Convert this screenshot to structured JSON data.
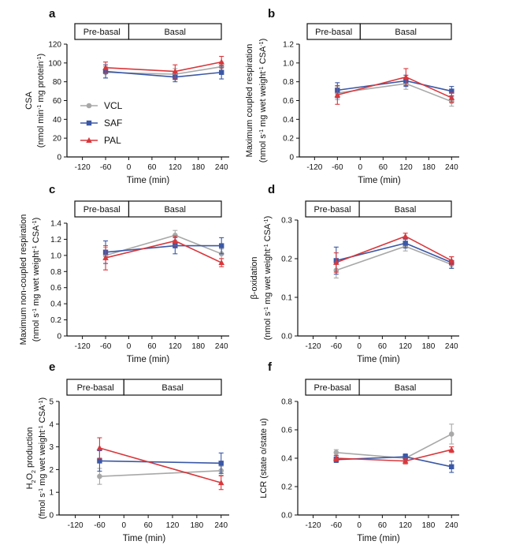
{
  "colors": {
    "VCL": "#a8a8a8",
    "SAF": "#3b58a6",
    "PAL": "#d9373b"
  },
  "legend": {
    "entries": [
      "VCL",
      "SAF",
      "PAL"
    ],
    "placement": "inside panel a, lower-left"
  },
  "chart_data": [
    {
      "type": "line",
      "panel": "a",
      "xlabel": "Time (min)",
      "ylabel": "CSA",
      "yunit_parts": [
        [
          "(nmol min",
          "normal"
        ],
        [
          "-1",
          "sup"
        ],
        [
          " mg protein",
          "normal"
        ],
        [
          "-1",
          "sup"
        ],
        [
          ")",
          "normal"
        ]
      ],
      "xticks": [
        -120,
        -60,
        0,
        60,
        120,
        180,
        240
      ],
      "xlim": [
        -160,
        260
      ],
      "ylim": [
        0,
        120
      ],
      "yticks": [
        0,
        20,
        40,
        60,
        80,
        100,
        120
      ],
      "ytick_labels": [
        "0",
        "20",
        "40",
        "60",
        "80",
        "100",
        "120"
      ],
      "phase_labels": [
        "Pre-basal",
        "Basal"
      ],
      "x": [
        -60,
        120,
        240
      ],
      "series": [
        {
          "name": "VCL",
          "values": [
            90,
            88,
            96
          ],
          "err": [
            6,
            6,
            5
          ]
        },
        {
          "name": "SAF",
          "values": [
            91,
            85,
            90
          ],
          "err": [
            7,
            5,
            7
          ]
        },
        {
          "name": "PAL",
          "values": [
            95,
            91,
            101
          ],
          "err": [
            6,
            7,
            6
          ]
        }
      ]
    },
    {
      "type": "line",
      "panel": "b",
      "xlabel": "Time (min)",
      "ylabel": "Maximum coupled respiration",
      "yunit_parts": [
        [
          "(nmol s",
          "normal"
        ],
        [
          "-1",
          "sup"
        ],
        [
          " mg wet weight",
          "normal"
        ],
        [
          "-1",
          "sup"
        ],
        [
          " CSA",
          "normal"
        ],
        [
          "-1",
          "sup"
        ],
        [
          ")",
          "normal"
        ]
      ],
      "xticks": [
        -120,
        -60,
        0,
        60,
        120,
        180,
        240
      ],
      "xlim": [
        -160,
        260
      ],
      "ylim": [
        0,
        1.2
      ],
      "yticks": [
        0,
        0.2,
        0.4,
        0.6,
        0.8,
        1.0,
        1.2
      ],
      "ytick_labels": [
        "0",
        "0.2",
        "0.4",
        "0.6",
        "0.8",
        "1.0",
        "1.2"
      ],
      "phase_labels": [
        "Pre-basal",
        "Basal"
      ],
      "x": [
        -60,
        120,
        240
      ],
      "series": [
        {
          "name": "VCL",
          "values": [
            0.68,
            0.78,
            0.59
          ],
          "err": [
            0.07,
            0.06,
            0.05
          ]
        },
        {
          "name": "SAF",
          "values": [
            0.71,
            0.81,
            0.7
          ],
          "err": [
            0.08,
            0.06,
            0.05
          ]
        },
        {
          "name": "PAL",
          "values": [
            0.66,
            0.85,
            0.63
          ],
          "err": [
            0.1,
            0.09,
            0.05
          ]
        }
      ]
    },
    {
      "type": "line",
      "panel": "c",
      "xlabel": "Time (min)",
      "ylabel": "Maximum non-coupled respiration",
      "yunit_parts": [
        [
          "(nmol s",
          "normal"
        ],
        [
          "-1",
          "sup"
        ],
        [
          " mg wet weight",
          "normal"
        ],
        [
          "-1",
          "sup"
        ],
        [
          " CSA",
          "normal"
        ],
        [
          "-1",
          "sup"
        ],
        [
          ")",
          "normal"
        ]
      ],
      "xticks": [
        -120,
        -60,
        0,
        60,
        120,
        180,
        240
      ],
      "xlim": [
        -160,
        260
      ],
      "ylim": [
        0,
        1.4
      ],
      "yticks": [
        0,
        0.2,
        0.4,
        0.6,
        0.8,
        1.0,
        1.2,
        1.4
      ],
      "ytick_labels": [
        "0",
        "0.2",
        "0.4",
        "0.6",
        "0.8",
        "1.0",
        "1.2",
        "1.4"
      ],
      "phase_labels": [
        "Pre-basal",
        "Basal"
      ],
      "x": [
        -60,
        120,
        240
      ],
      "series": [
        {
          "name": "VCL",
          "values": [
            1.0,
            1.25,
            1.02
          ],
          "err": [
            0.1,
            0.06,
            0.06
          ]
        },
        {
          "name": "SAF",
          "values": [
            1.04,
            1.12,
            1.12
          ],
          "err": [
            0.14,
            0.1,
            0.1
          ]
        },
        {
          "name": "PAL",
          "values": [
            0.97,
            1.18,
            0.91
          ],
          "err": [
            0.15,
            0.06,
            0.05
          ]
        }
      ]
    },
    {
      "type": "line",
      "panel": "d",
      "xlabel": "Time (min)",
      "ylabel": "β-oxidation",
      "yunit_parts": [
        [
          "(nmol s",
          "normal"
        ],
        [
          "-1",
          "sup"
        ],
        [
          " mg wet weight",
          "normal"
        ],
        [
          "-1",
          "sup"
        ],
        [
          " CSA",
          "normal"
        ],
        [
          "-1",
          "sup"
        ],
        [
          ")",
          "normal"
        ]
      ],
      "xticks": [
        -120,
        -60,
        0,
        60,
        120,
        180,
        240
      ],
      "xlim": [
        -160,
        260
      ],
      "ylim": [
        0,
        0.3
      ],
      "yticks": [
        0,
        0.1,
        0.2,
        0.3
      ],
      "ytick_labels": [
        "0.0",
        "0.1",
        "0.2",
        "0.3"
      ],
      "phase_labels": [
        "Pre-basal",
        "Basal"
      ],
      "x": [
        -60,
        120,
        240
      ],
      "series": [
        {
          "name": "VCL",
          "values": [
            0.17,
            0.232,
            0.185
          ],
          "err": [
            0.02,
            0.012,
            0.01
          ]
        },
        {
          "name": "SAF",
          "values": [
            0.195,
            0.24,
            0.19
          ],
          "err": [
            0.035,
            0.012,
            0.015
          ]
        },
        {
          "name": "PAL",
          "values": [
            0.19,
            0.258,
            0.195
          ],
          "err": [
            0.025,
            0.008,
            0.01
          ]
        }
      ]
    },
    {
      "type": "line",
      "panel": "e",
      "xlabel": "Time (min)",
      "ylabel_parts": [
        [
          "H",
          "normal"
        ],
        [
          "2",
          "sub"
        ],
        [
          "O",
          "normal"
        ],
        [
          "2",
          "sub"
        ],
        [
          " production",
          "normal"
        ]
      ],
      "yunit_parts": [
        [
          "(fmol s",
          "normal"
        ],
        [
          "-1",
          "sup"
        ],
        [
          " mg wet weight",
          "normal"
        ],
        [
          "-1",
          "sup"
        ],
        [
          " CSA",
          "normal"
        ],
        [
          "-1",
          "sup"
        ],
        [
          ")",
          "normal"
        ]
      ],
      "xticks": [
        -120,
        -60,
        0,
        60,
        120,
        180,
        240
      ],
      "xlim": [
        -160,
        260
      ],
      "ylim": [
        0,
        5
      ],
      "yticks": [
        0,
        1,
        2,
        3,
        4,
        5
      ],
      "ytick_labels": [
        "0",
        "1",
        "2",
        "3",
        "4",
        "5"
      ],
      "phase_labels": [
        "Pre-basal",
        "Basal"
      ],
      "x": [
        -60,
        240
      ],
      "series": [
        {
          "name": "VCL",
          "values": [
            1.7,
            1.95
          ],
          "err": [
            0.35,
            0.2
          ]
        },
        {
          "name": "SAF",
          "values": [
            2.38,
            2.28
          ],
          "err": [
            0.45,
            0.45
          ]
        },
        {
          "name": "PAL",
          "values": [
            2.95,
            1.42
          ],
          "err": [
            0.45,
            0.3
          ]
        }
      ]
    },
    {
      "type": "line",
      "panel": "f",
      "xlabel": "Time (min)",
      "ylabel": "LCR (state o/state u)",
      "xticks": [
        -120,
        -60,
        0,
        60,
        120,
        180,
        240
      ],
      "xlim": [
        -160,
        260
      ],
      "ylim": [
        0,
        0.8
      ],
      "yticks": [
        0,
        0.2,
        0.4,
        0.6,
        0.8
      ],
      "ytick_labels": [
        "0.0",
        "0.2",
        "0.4",
        "0.6",
        "0.8"
      ],
      "phase_labels": [
        "Pre-basal",
        "Basal"
      ],
      "x": [
        -60,
        120,
        240
      ],
      "series": [
        {
          "name": "VCL",
          "values": [
            0.44,
            0.4,
            0.57
          ],
          "err": [
            0.02,
            0.02,
            0.07
          ]
        },
        {
          "name": "SAF",
          "values": [
            0.39,
            0.41,
            0.34
          ],
          "err": [
            0.02,
            0.02,
            0.04
          ]
        },
        {
          "name": "PAL",
          "values": [
            0.4,
            0.38,
            0.46
          ],
          "err": [
            0.02,
            0.02,
            0.02
          ]
        }
      ]
    }
  ]
}
